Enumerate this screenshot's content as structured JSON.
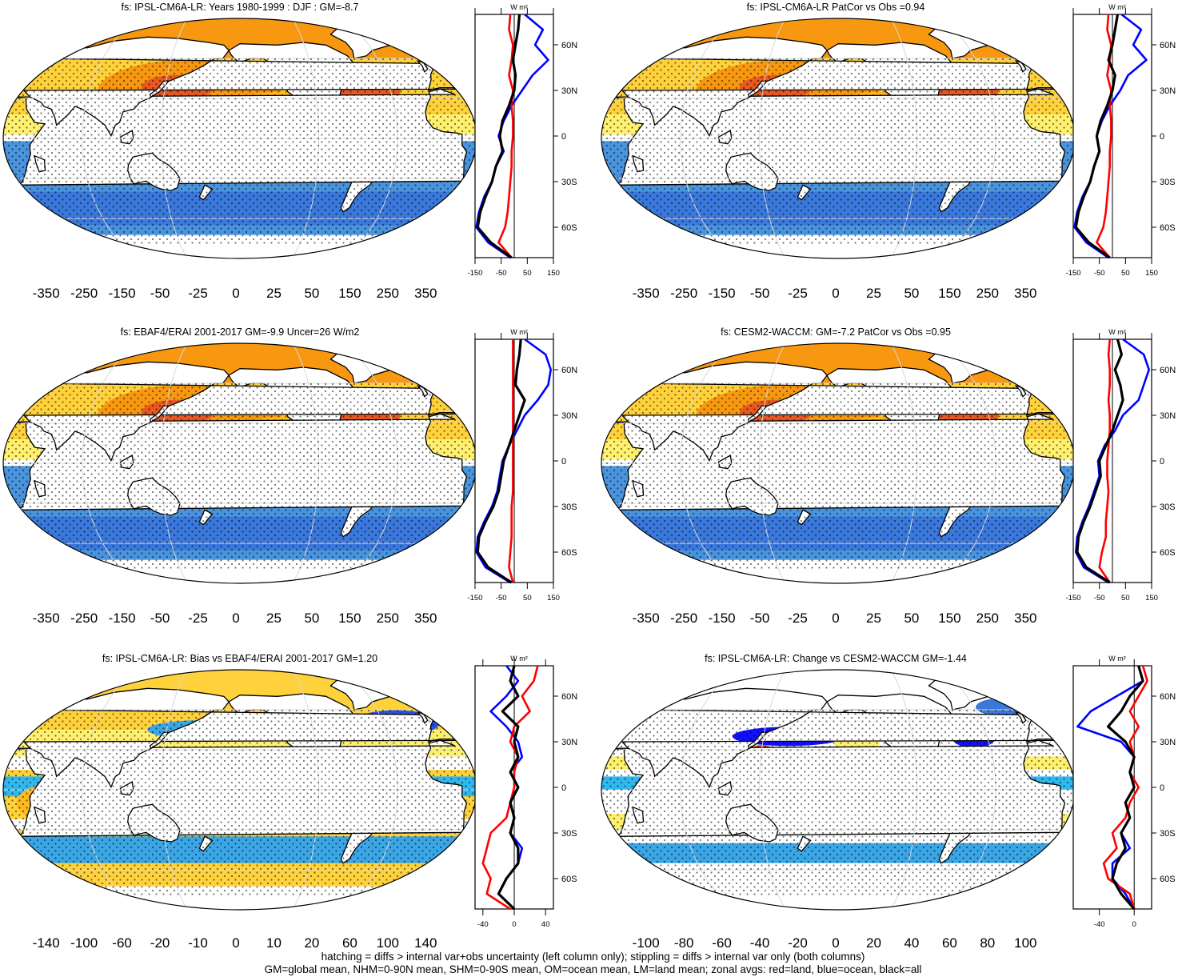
{
  "footer": {
    "line1": "hatching = diffs > internal var+obs uncertainty (left column only); stippling = diffs > internal var only (both columns)",
    "line2": "GM=global mean, NHM=0-90N mean, SHM=0-90S mean, OM=ocean mean, LM=land mean; zonal avgs: red=land, blue=ocean, black=all"
  },
  "colors": {
    "land_line": "#ff0000",
    "ocean_line": "#0000ff",
    "all_line": "#000000",
    "land_fill": "#ffffff",
    "scale": [
      "#2020e0",
      "#1010ff",
      "#2850e6",
      "#3a78dc",
      "#4a94de",
      "#3aa6e6",
      "#30b8ee",
      "#6ec6ee",
      "#ffffff",
      "#ffffff",
      "#fff070",
      "#ffd23c",
      "#ffb81e",
      "#f89810",
      "#f07818",
      "#e85820",
      "#e83020",
      "#d00000"
    ]
  },
  "chart_data": [
    {
      "type": "heatmap",
      "title": "fs: IPSL-CM6A-LR: Years 1980-1999 : DJF : GM=-8.7",
      "colorbar_labels": [
        "-350",
        "-250",
        "-150",
        "-50",
        "-25",
        "0",
        "25",
        "50",
        "150",
        "250",
        "350"
      ],
      "pattern": "mean",
      "zonal": {
        "units": "W m²",
        "xlim": [
          -150,
          150
        ],
        "xticks": [
          "-150",
          "-50",
          "50",
          "150"
        ],
        "yticks": [
          "60N",
          "30N",
          "0",
          "30S",
          "60S"
        ],
        "lat": [
          80,
          70,
          60,
          50,
          40,
          30,
          20,
          10,
          0,
          -10,
          -20,
          -30,
          -40,
          -50,
          -60,
          -70,
          -80
        ],
        "all": [
          20,
          15,
          5,
          -5,
          5,
          0,
          -20,
          -45,
          -55,
          -45,
          -70,
          -85,
          -110,
          -130,
          -140,
          -90,
          -10
        ],
        "ocean": [
          40,
          110,
          80,
          130,
          70,
          30,
          -10,
          -40,
          -60,
          -40,
          -70,
          -85,
          -115,
          -135,
          -145,
          -100,
          -15
        ],
        "land": [
          -15,
          -20,
          -5,
          -10,
          -20,
          -5,
          -10,
          -5,
          -5,
          -10,
          -10,
          -15,
          -20,
          -25,
          -35,
          -60,
          -10
        ]
      }
    },
    {
      "type": "heatmap",
      "title": "fs: IPSL-CM6A-LR PatCor vs Obs =0.94",
      "colorbar_labels": [
        "-350",
        "-250",
        "-150",
        "-50",
        "-25",
        "0",
        "25",
        "50",
        "150",
        "250",
        "350"
      ],
      "pattern": "mean",
      "zonal": {
        "units": "W m²",
        "xlim": [
          -150,
          150
        ],
        "xticks": [
          "-150",
          "-50",
          "50",
          "150"
        ],
        "yticks": [
          "60N",
          "30N",
          "0",
          "30S",
          "60S"
        ],
        "lat": [
          80,
          70,
          60,
          50,
          40,
          30,
          20,
          10,
          0,
          -10,
          -20,
          -30,
          -40,
          -50,
          -60,
          -70,
          -80
        ],
        "all": [
          20,
          10,
          0,
          -15,
          10,
          0,
          -20,
          -45,
          -60,
          -50,
          -70,
          -85,
          -110,
          -130,
          -140,
          -90,
          -10
        ],
        "ocean": [
          35,
          110,
          80,
          130,
          60,
          30,
          -10,
          -40,
          -60,
          -50,
          -70,
          -85,
          -115,
          -135,
          -145,
          -100,
          -15
        ],
        "land": [
          -15,
          -20,
          -5,
          -10,
          -20,
          -5,
          -10,
          -5,
          -5,
          -10,
          -10,
          -15,
          -20,
          -25,
          -35,
          -60,
          -10
        ]
      }
    },
    {
      "type": "heatmap",
      "title": "fs: EBAF4/ERAI 2001-2017 GM=-9.9 Uncer=26 W/m2",
      "colorbar_labels": [
        "-350",
        "-250",
        "-150",
        "-50",
        "-25",
        "0",
        "25",
        "50",
        "150",
        "250",
        "350"
      ],
      "pattern": "mean",
      "zonal": {
        "units": "W m²",
        "xlim": [
          -150,
          150
        ],
        "xticks": [
          "-150",
          "-50",
          "50",
          "150"
        ],
        "yticks": [
          "60N",
          "30N",
          "0",
          "30S",
          "60S"
        ],
        "lat": [
          80,
          70,
          60,
          50,
          40,
          30,
          20,
          10,
          0,
          -10,
          -20,
          -30,
          -40,
          -50,
          -60,
          -70,
          -80
        ],
        "all": [
          25,
          20,
          10,
          5,
          40,
          20,
          0,
          -20,
          -40,
          -50,
          -60,
          -80,
          -110,
          -135,
          -140,
          -100,
          -10
        ],
        "ocean": [
          40,
          120,
          140,
          130,
          90,
          40,
          10,
          -20,
          -45,
          -55,
          -65,
          -85,
          -115,
          -140,
          -145,
          -110,
          -15
        ],
        "land": [
          -5,
          -5,
          -5,
          -5,
          -5,
          -5,
          -5,
          -5,
          -5,
          -5,
          -5,
          -10,
          -10,
          -10,
          -15,
          -20,
          -5
        ]
      }
    },
    {
      "type": "heatmap",
      "title": "fs: CESM2-WACCM: GM=-7.2 PatCor vs Obs =0.95",
      "colorbar_labels": [
        "-350",
        "-250",
        "-150",
        "-50",
        "-25",
        "0",
        "25",
        "50",
        "150",
        "250",
        "350"
      ],
      "pattern": "mean",
      "zonal": {
        "units": "W m²",
        "xlim": [
          -150,
          150
        ],
        "xticks": [
          "-150",
          "-50",
          "50",
          "150"
        ],
        "yticks": [
          "60N",
          "30N",
          "0",
          "30S",
          "60S"
        ],
        "lat": [
          80,
          70,
          60,
          50,
          40,
          30,
          20,
          10,
          0,
          -10,
          -20,
          -30,
          -40,
          -50,
          -60,
          -70,
          -80
        ],
        "all": [
          20,
          35,
          10,
          30,
          40,
          20,
          0,
          -25,
          -50,
          -45,
          -65,
          -85,
          -110,
          -130,
          -135,
          -100,
          -10
        ],
        "ocean": [
          40,
          120,
          140,
          120,
          100,
          40,
          10,
          -30,
          -55,
          -50,
          -70,
          -90,
          -115,
          -135,
          -140,
          -110,
          -15
        ],
        "land": [
          -10,
          -15,
          -10,
          -10,
          -15,
          -10,
          -10,
          -15,
          -20,
          -20,
          -15,
          -20,
          -25,
          -25,
          -40,
          -50,
          -10
        ]
      }
    },
    {
      "type": "heatmap",
      "title": "fs: IPSL-CM6A-LR: Bias vs EBAF4/ERAI 2001-2017 GM=1.20",
      "colorbar_labels": [
        "-140",
        "-100",
        "-60",
        "-20",
        "-10",
        "0",
        "10",
        "20",
        "60",
        "100",
        "140"
      ],
      "pattern": "bias",
      "zonal": {
        "units": "W m²",
        "xlim": [
          -50,
          50
        ],
        "xticks": [
          "-40",
          "0",
          "40"
        ],
        "yticks": [
          "60N",
          "30N",
          "0",
          "30S",
          "60S"
        ],
        "lat": [
          80,
          70,
          60,
          50,
          40,
          30,
          20,
          10,
          0,
          -10,
          -20,
          -30,
          -40,
          -50,
          -60,
          -70,
          -80
        ],
        "all": [
          0,
          -5,
          5,
          -15,
          5,
          0,
          5,
          -5,
          5,
          -5,
          0,
          -5,
          5,
          5,
          -10,
          -20,
          0
        ],
        "ocean": [
          -10,
          5,
          -10,
          -30,
          -10,
          5,
          10,
          -5,
          5,
          -5,
          0,
          -5,
          10,
          5,
          -10,
          -20,
          0
        ],
        "land": [
          30,
          25,
          10,
          20,
          0,
          -5,
          5,
          0,
          0,
          -5,
          -10,
          -30,
          -35,
          -40,
          -30,
          -35,
          -5
        ]
      }
    },
    {
      "type": "heatmap",
      "title": "fs: IPSL-CM6A-LR: Change vs CESM2-WACCM GM=-1.44",
      "colorbar_labels": [
        "-100",
        "-80",
        "-60",
        "-40",
        "-20",
        "0",
        "20",
        "40",
        "60",
        "80",
        "100"
      ],
      "pattern": "change",
      "zonal": {
        "units": "W m²",
        "xlim": [
          -70,
          20
        ],
        "xticks": [
          "-40",
          "0"
        ],
        "yticks": [
          "60N",
          "30N",
          "0",
          "30S",
          "60S"
        ],
        "lat": [
          80,
          70,
          60,
          50,
          40,
          30,
          20,
          10,
          0,
          -10,
          -20,
          -30,
          -40,
          -50,
          -60,
          -70,
          -80
        ],
        "all": [
          5,
          10,
          -5,
          -15,
          -30,
          -10,
          0,
          -5,
          0,
          -10,
          -5,
          -15,
          -10,
          -20,
          -25,
          -15,
          0
        ],
        "ocean": [
          5,
          10,
          -20,
          -50,
          -65,
          -15,
          0,
          -5,
          0,
          -10,
          -5,
          -15,
          -5,
          -25,
          -25,
          -10,
          0
        ],
        "land": [
          10,
          15,
          5,
          -5,
          5,
          -5,
          0,
          -5,
          5,
          -5,
          -10,
          -25,
          -20,
          -35,
          -30,
          -5,
          0
        ]
      }
    }
  ]
}
